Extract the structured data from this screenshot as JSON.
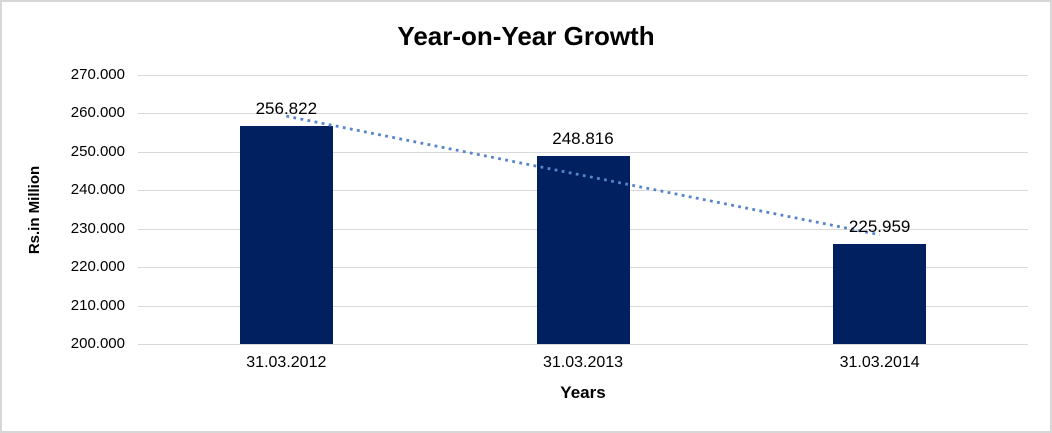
{
  "chart_data": {
    "type": "bar",
    "title": "Year-on-Year Growth",
    "xlabel": "Years",
    "ylabel": "Rs.in Million",
    "categories": [
      "31.03.2012",
      "31.03.2013",
      "31.03.2014"
    ],
    "values": [
      256.822,
      248.816,
      225.959
    ],
    "value_labels": [
      "256.822",
      "248.816",
      "225.959"
    ],
    "ylim": [
      200,
      270
    ],
    "y_ticks": [
      {
        "value": 200,
        "label": "200.000"
      },
      {
        "value": 210,
        "label": "210.000"
      },
      {
        "value": 220,
        "label": "220.000"
      },
      {
        "value": 230,
        "label": "230.000"
      },
      {
        "value": 240,
        "label": "240.000"
      },
      {
        "value": 250,
        "label": "250.000"
      },
      {
        "value": 260,
        "label": "260.000"
      },
      {
        "value": 270,
        "label": "270.000"
      }
    ],
    "grid": true,
    "legend_position": "none",
    "bar_color": "#002060",
    "gridline_color": "#d9d9d9",
    "trendline": {
      "type": "linear",
      "style": "dotted",
      "color": "#5585c8",
      "start_value": 259.297,
      "end_value": 228.435
    }
  }
}
